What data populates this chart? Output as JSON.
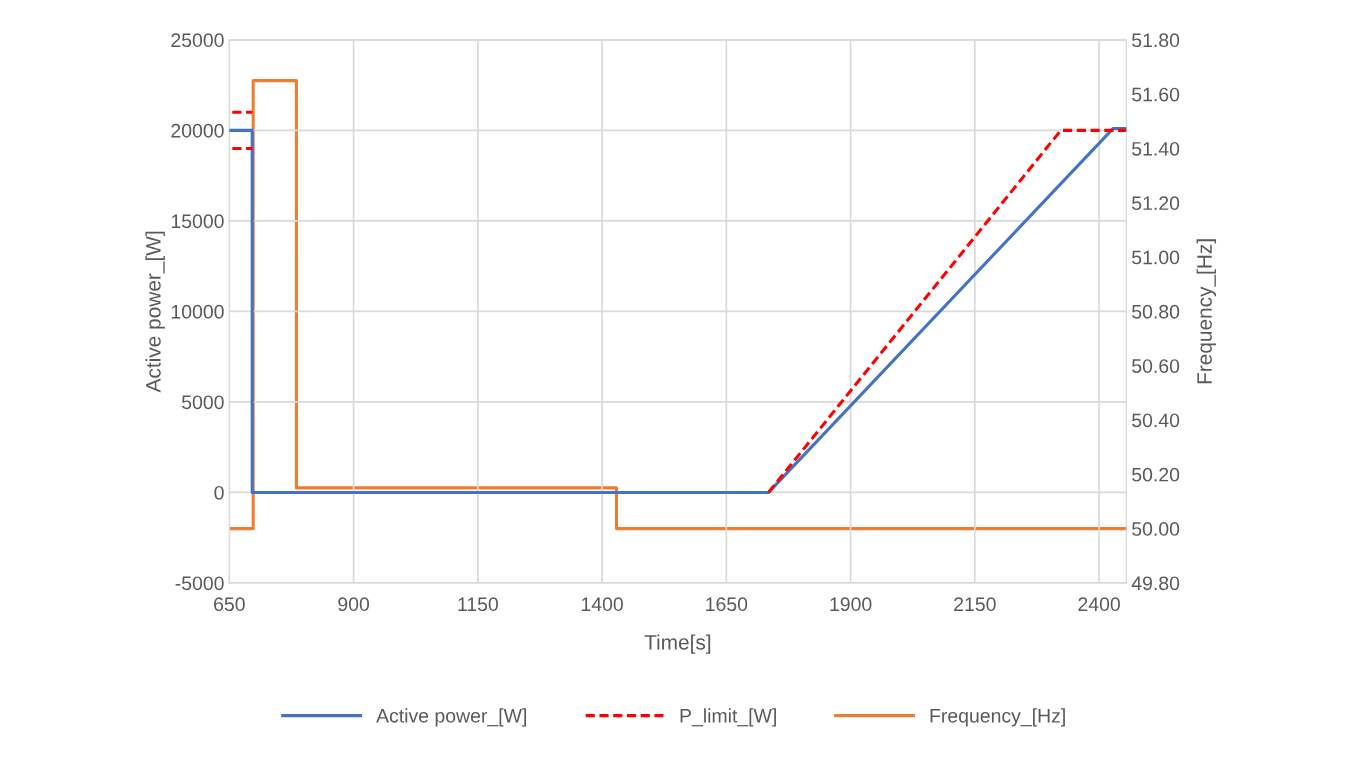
{
  "chart_data": {
    "type": "line",
    "xlabel": "Time[s]",
    "ylabel": "Active power_[W]",
    "y2label": "Frequency_[Hz]",
    "xlim": [
      650,
      2455
    ],
    "xticks": [
      650,
      900,
      1150,
      1400,
      1650,
      1900,
      2150,
      2400
    ],
    "ylim": [
      -5000,
      25000
    ],
    "yticks": [
      -5000,
      0,
      5000,
      10000,
      15000,
      20000,
      25000
    ],
    "y2lim": [
      49.8,
      51.8
    ],
    "y2ticks": [
      {
        "value": 49.8,
        "label": "49.80"
      },
      {
        "value": 50.0,
        "label": "50.00"
      },
      {
        "value": 50.2,
        "label": "50.20"
      },
      {
        "value": 50.4,
        "label": "50.40"
      },
      {
        "value": 50.6,
        "label": "50.60"
      },
      {
        "value": 50.8,
        "label": "50.80"
      },
      {
        "value": 51.0,
        "label": "51.00"
      },
      {
        "value": 51.2,
        "label": "51.20"
      },
      {
        "value": 51.4,
        "label": "51.40"
      },
      {
        "value": 51.6,
        "label": "51.60"
      },
      {
        "value": 51.8,
        "label": "51.80"
      }
    ],
    "grid": true,
    "legend": "bottom",
    "series": [
      {
        "name": "Active power_[W]",
        "color": "#4472c4",
        "line_style": "solid",
        "x": [
          650,
          696,
          696,
          1735,
          2428,
          2455
        ],
        "values": [
          20000,
          20000,
          0,
          0,
          20100,
          20100
        ]
      },
      {
        "name": "P_limit_[W]",
        "color": "#ff0000",
        "line_style": "dashed",
        "x": [
          1735,
          2323,
          2455
        ],
        "values": [
          0,
          20000,
          20000
        ]
      },
      {
        "color": "#ff0000",
        "line_style": "dashed",
        "x": [
          656,
          696
        ],
        "values": [
          21000,
          21000
        ]
      },
      {
        "color": "#ff0000",
        "line_style": "dashed",
        "x": [
          656,
          696
        ],
        "values": [
          19000,
          19000
        ]
      },
      {
        "name": "Frequency_[Hz]",
        "color": "#ed7d31",
        "line_style": "solid",
        "axis": "y2",
        "x": [
          650,
          698,
          698,
          785,
          785,
          1429,
          1429,
          2455
        ],
        "values": [
          50.0,
          50.0,
          51.65,
          51.65,
          50.15,
          50.15,
          50.0,
          50.0
        ]
      }
    ]
  }
}
